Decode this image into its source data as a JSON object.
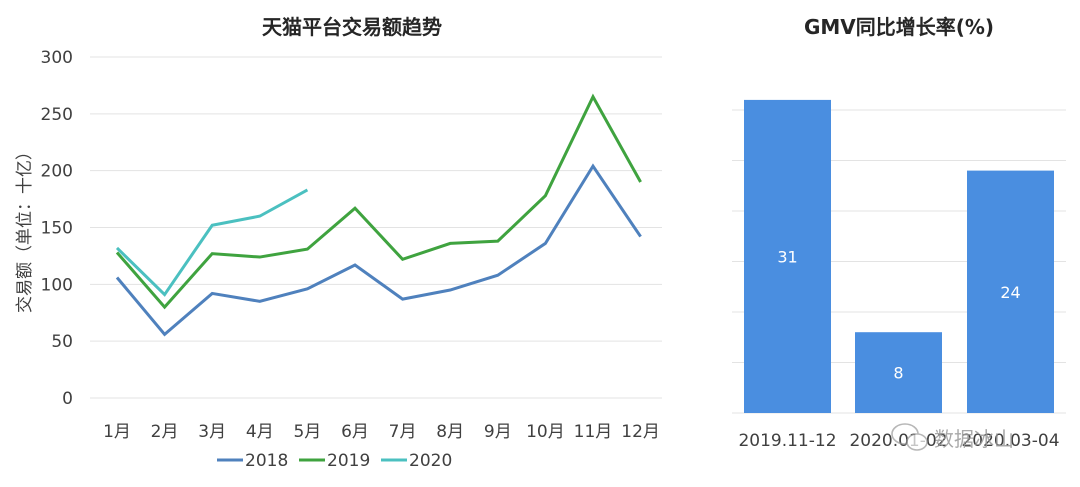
{
  "chart_data": [
    {
      "type": "line",
      "title": "天猫平台交易额趋势",
      "xlabel": "",
      "ylabel": "交易额（单位：十亿）",
      "categories": [
        "1月",
        "2月",
        "3月",
        "4月",
        "5月",
        "6月",
        "7月",
        "8月",
        "9月",
        "10月",
        "11月",
        "12月"
      ],
      "ylim": [
        0,
        300
      ],
      "yticks": [
        0,
        50,
        100,
        150,
        200,
        250,
        300
      ],
      "grid": true,
      "legend_position": "bottom",
      "series": [
        {
          "name": "2018",
          "color": "#4f81bd",
          "values": [
            106,
            56,
            92,
            85,
            96,
            117,
            87,
            95,
            108,
            136,
            204,
            142
          ]
        },
        {
          "name": "2019",
          "color": "#3fa33f",
          "values": [
            128,
            80,
            127,
            124,
            131,
            167,
            122,
            136,
            138,
            178,
            265,
            190
          ]
        },
        {
          "name": "2020",
          "color": "#4bc0c0",
          "values": [
            132,
            91,
            152,
            160,
            183
          ]
        }
      ]
    },
    {
      "type": "bar",
      "title": "GMV同比增长率(%)",
      "xlabel": "",
      "ylabel": "",
      "categories": [
        "2019.11-12",
        "2020.01-02",
        "2020.03-04"
      ],
      "values": [
        31,
        8,
        24
      ],
      "data_labels": [
        "31",
        "8",
        "24"
      ],
      "ylim": [
        0,
        30
      ],
      "grid": true,
      "bar_color": "#4a8ee0"
    }
  ],
  "watermark": {
    "text": "数据冰山"
  }
}
